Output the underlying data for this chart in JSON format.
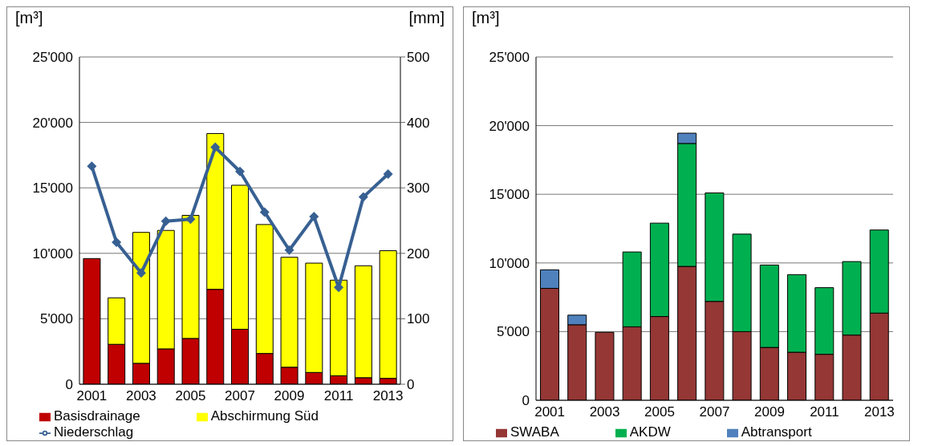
{
  "chart_data": [
    {
      "type": "bar",
      "stacked": true,
      "ylabel": "[m³]",
      "y2label": "[mm]",
      "categories": [
        "2001",
        null,
        "2003",
        null,
        "2005",
        null,
        "2007",
        null,
        "2009",
        null,
        "2011",
        null,
        "2013"
      ],
      "series": [
        {
          "name": "Basisdrainage",
          "color": "#c00000",
          "values": [
            9600,
            3050,
            1600,
            2700,
            3500,
            7250,
            4200,
            2350,
            1300,
            900,
            650,
            500,
            450
          ]
        },
        {
          "name": "Abschirmung Süd",
          "color": "#ffff00",
          "values": [
            null,
            3550,
            10000,
            9050,
            9400,
            11900,
            11000,
            9850,
            8400,
            8350,
            7300,
            8550,
            9750
          ]
        },
        {
          "name": "Niederschlag",
          "type": "line",
          "axis": "y2",
          "color": "#376092",
          "marker": "diamond",
          "line_style": "solid",
          "values": [
            333,
            217,
            170,
            249,
            252,
            362,
            325,
            263,
            205,
            256,
            148,
            286,
            321
          ]
        }
      ],
      "ylim": [
        0,
        25000
      ],
      "yticks": [
        0,
        {
          "value": 5000,
          "label": "5'000"
        },
        {
          "value": 10000,
          "label": "10'000"
        },
        {
          "value": 15000,
          "label": "15'000"
        },
        {
          "value": 20000,
          "label": "20'000"
        },
        {
          "value": 25000,
          "label": "25'000"
        }
      ],
      "y2lim": [
        0,
        500
      ],
      "y2ticks": [
        0,
        100,
        200,
        300,
        400,
        500
      ],
      "grid": "y",
      "legend": "bottom"
    },
    {
      "type": "bar",
      "stacked": true,
      "ylabel": "[m³]",
      "categories": [
        "2001",
        null,
        "2003",
        null,
        "2005",
        null,
        "2007",
        null,
        "2009",
        null,
        "2011",
        null,
        "2013"
      ],
      "series": [
        {
          "name": "SWABA",
          "color": "#953735",
          "values": [
            8150,
            5500,
            4950,
            5350,
            6100,
            9750,
            7200,
            5000,
            3850,
            3500,
            3350,
            4750,
            6350
          ]
        },
        {
          "name": "AKDW",
          "color": "#00b050",
          "values": [
            null,
            null,
            null,
            5450,
            6800,
            8950,
            7900,
            7100,
            6000,
            5650,
            4850,
            5350,
            6050
          ]
        },
        {
          "name": "Abtransport",
          "color": "#4f81bd",
          "values": [
            1350,
            700,
            null,
            null,
            null,
            750,
            null,
            null,
            null,
            null,
            null,
            null,
            null
          ]
        }
      ],
      "ylim": [
        0,
        25000
      ],
      "yticks": [
        0,
        {
          "value": 5000,
          "label": "5'000"
        },
        {
          "value": 10000,
          "label": "10'000"
        },
        {
          "value": 15000,
          "label": "15'000"
        },
        {
          "value": 20000,
          "label": "20'000"
        },
        {
          "value": 25000,
          "label": "25'000"
        }
      ],
      "grid": "y",
      "legend": "bottom"
    }
  ]
}
